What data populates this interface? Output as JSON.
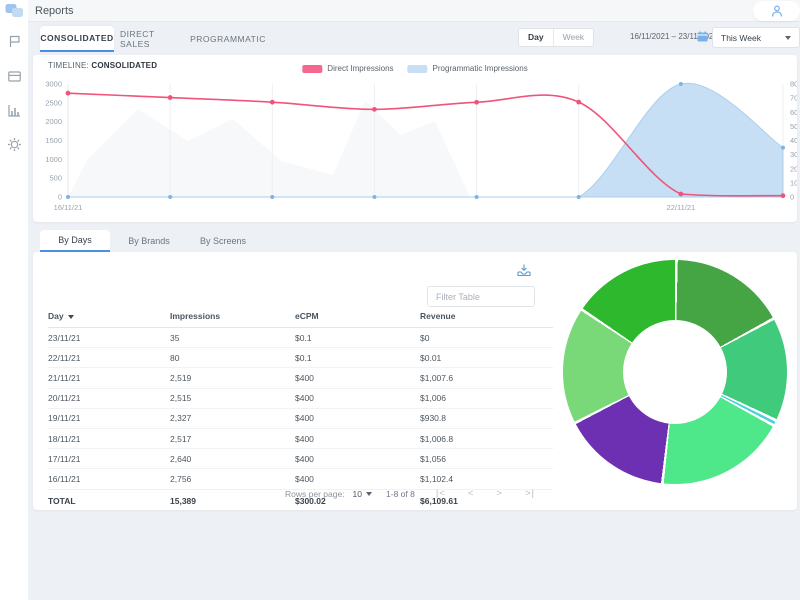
{
  "topbar": {
    "title": "Reports"
  },
  "sidebar": {
    "icons": [
      "logo",
      "flag",
      "card",
      "bar-chart",
      "gear"
    ]
  },
  "controls": {
    "report_tabs": [
      {
        "label": "CONSOLIDATED"
      },
      {
        "label": "DIRECT SALES"
      },
      {
        "label": "PROGRAMMATIC"
      }
    ],
    "active_report_tab": "CONSOLIDATED",
    "granularity": {
      "options": [
        "Day",
        "Week"
      ],
      "selected": "Day"
    },
    "date_range": "16/11/2021 – 23/11/2021",
    "period_select": {
      "value": "This Week"
    }
  },
  "timeline": {
    "title_label": "TIMELINE:",
    "title_value": "CONSOLIDATED",
    "legend": [
      {
        "label": "Direct Impressions",
        "color": "#f4678e"
      },
      {
        "label": "Programmatic Impressions",
        "color": "#c7dff5"
      }
    ],
    "chart_data": {
      "type": "line",
      "x": [
        "16/11/21",
        "17/11/21",
        "18/11/21",
        "19/11/21",
        "20/11/21",
        "21/11/21",
        "22/11/21",
        "23/11/21"
      ],
      "series": [
        {
          "name": "Direct Impressions",
          "style": "line",
          "axis": "left",
          "color": "#f0547c",
          "values": [
            2756,
            2640,
            2517,
            2327,
            2515,
            2519,
            80,
            35
          ]
        },
        {
          "name": "Programmatic Impressions",
          "style": "area",
          "axis": "right",
          "color": "#c7dff5",
          "line_color": "#abceec",
          "dot_color": "#7db4e4",
          "values": [
            0,
            0,
            0,
            0,
            0,
            0,
            80,
            35
          ]
        }
      ],
      "left_axis": {
        "min": 0,
        "max": 3000,
        "ticks": [
          0,
          500,
          1000,
          1500,
          2000,
          2500,
          3000
        ]
      },
      "right_axis": {
        "min": 0,
        "max": 80,
        "ticks": [
          0,
          10,
          20,
          30,
          40,
          50,
          60,
          70,
          80
        ]
      },
      "x_tick_labels": [
        {
          "label": "16/11/21",
          "index": 0
        },
        {
          "label": "22/11/21",
          "index": 6
        }
      ],
      "grid": "vertical",
      "legend_position": "top"
    }
  },
  "tables": {
    "tabs": [
      {
        "label": "By Days"
      },
      {
        "label": "By Brands"
      },
      {
        "label": "By Screens"
      }
    ],
    "active_tab": "By Days",
    "filter_placeholder": "Filter Table",
    "table": {
      "columns": [
        "Day",
        "Impressions",
        "eCPM",
        "Revenue"
      ],
      "sorted_by": "Day",
      "rows": [
        [
          "23/11/21",
          "35",
          "$0.1",
          "$0"
        ],
        [
          "22/11/21",
          "80",
          "$0.1",
          "$0.01"
        ],
        [
          "21/11/21",
          "2,519",
          "$400",
          "$1,007.6"
        ],
        [
          "20/11/21",
          "2,515",
          "$400",
          "$1,006"
        ],
        [
          "19/11/21",
          "2,327",
          "$400",
          "$930.8"
        ],
        [
          "18/11/21",
          "2,517",
          "$400",
          "$1,006.8"
        ],
        [
          "17/11/21",
          "2,640",
          "$400",
          "$1,056"
        ],
        [
          "16/11/21",
          "2,756",
          "$400",
          "$1,102.4"
        ]
      ],
      "total_row": [
        "TOTAL",
        "15,389",
        "$300.02",
        "$6,109.61"
      ]
    },
    "pagination": {
      "rows_per_page_label": "Rows per page:",
      "rows_per_page": "10",
      "range": "1-8 of 8",
      "nav": [
        "|<",
        "<",
        ">",
        ">|"
      ]
    }
  },
  "donut": {
    "chart_data": {
      "type": "pie",
      "style": "donut",
      "segments": [
        {
          "pct": 16.9,
          "color": "#45a545"
        },
        {
          "pct": 15.0,
          "color": "#40ca7c"
        },
        {
          "pct": 0.8,
          "color": "#4ccfe0"
        },
        {
          "pct": 18.9,
          "color": "#4ee88b"
        },
        {
          "pct": 15.7,
          "color": "#6d30b3"
        },
        {
          "pct": 16.9,
          "color": "#79d878"
        },
        {
          "pct": 15.8,
          "color": "#2eb82e"
        }
      ]
    }
  },
  "colors": {
    "accent": "#4a90e2",
    "pink_line": "#f0547c",
    "area_blue": "#c7dff5",
    "icon_blue": "#7fb3ec"
  }
}
